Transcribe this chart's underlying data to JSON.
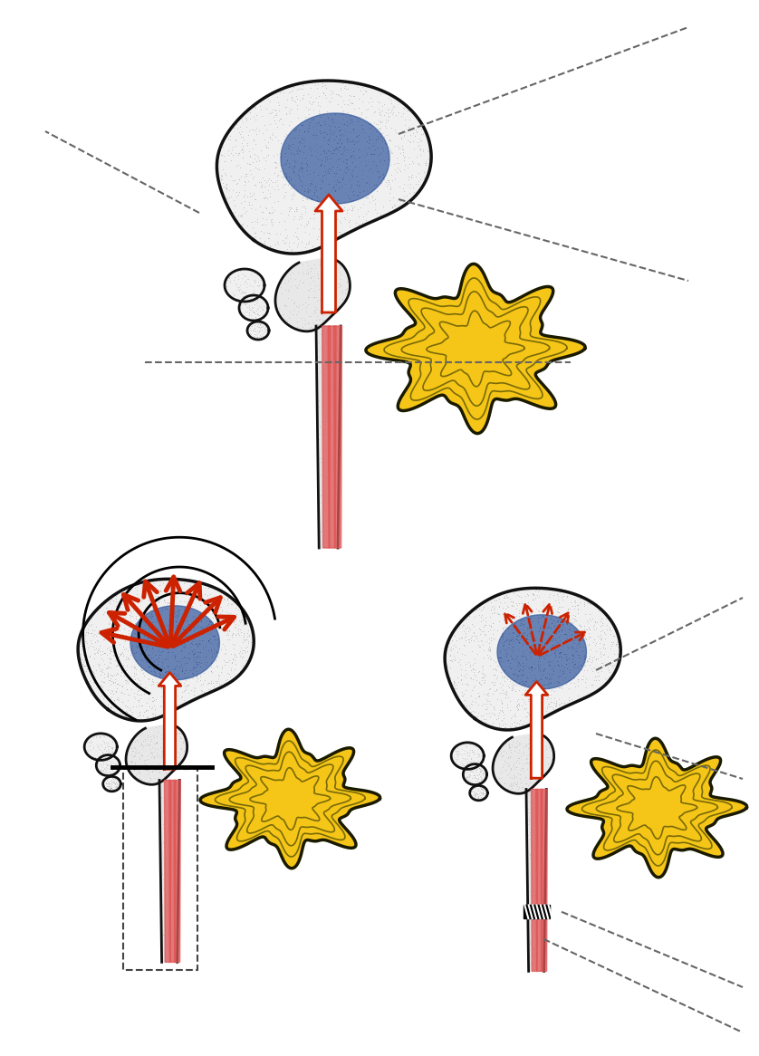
{
  "bg_color": "#ffffff",
  "brain_outline_color": "#111111",
  "brain_fill_color": "#f2f2f2",
  "blue_color": "#3a5fa0",
  "yellow_color": "#f5c518",
  "red_color": "#cc2200",
  "red_stripe": "#e05555",
  "dash_color": "#666666",
  "fig_width": 8.38,
  "fig_height": 11.66,
  "dpi": 100
}
